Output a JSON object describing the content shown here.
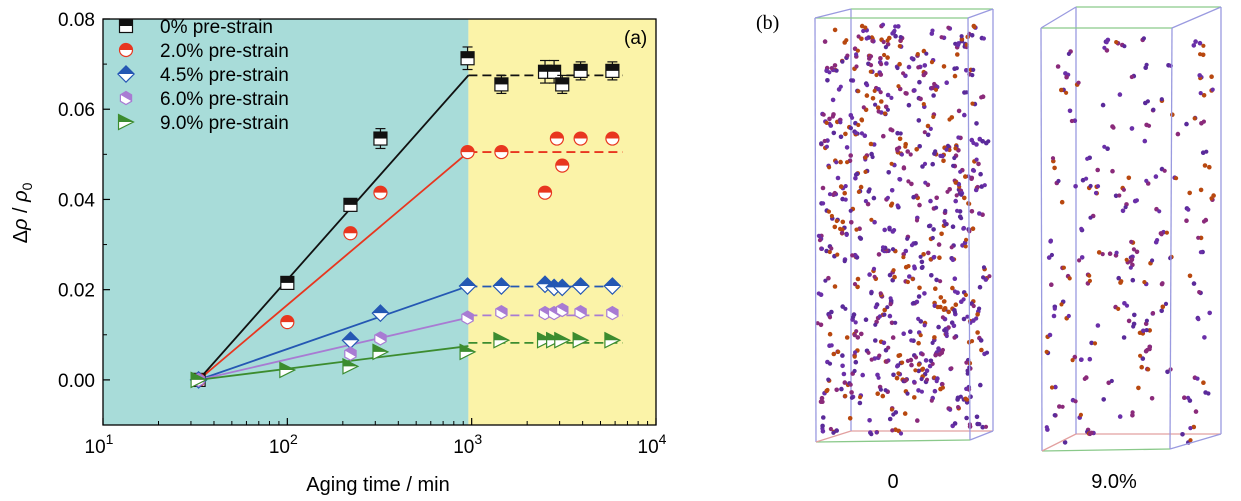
{
  "panel_a_label": "(a)",
  "panel_b_label": "(b)",
  "chart_data": {
    "type": "scatter",
    "xscale": "log",
    "xlim": [
      10,
      10000
    ],
    "ylim": [
      -0.01,
      0.08
    ],
    "xlabel": "Aging time / min",
    "ylabel": "Δρ / ρ0",
    "x_ticks": [
      {
        "value": 10,
        "base": "10",
        "exp": "1"
      },
      {
        "value": 100,
        "base": "10",
        "exp": "2"
      },
      {
        "value": 1000,
        "base": "10",
        "exp": "3"
      },
      {
        "value": 10000,
        "base": "10",
        "exp": "4"
      }
    ],
    "y_ticks": [
      "0.00",
      "0.02",
      "0.04",
      "0.06",
      "0.08"
    ],
    "y_tick_values": [
      0,
      0.02,
      0.04,
      0.06,
      0.08
    ],
    "regions": [
      {
        "x_from": 10,
        "x_to": 960,
        "color": "#a8dcd9"
      },
      {
        "x_from": 960,
        "x_to": 10000,
        "color": "#fbf3a8"
      }
    ],
    "legend_position": "top-left",
    "grid": false,
    "series": [
      {
        "name": "0% pre-strain",
        "color": "#111111",
        "marker": "square",
        "x": [
          33,
          100,
          220,
          320,
          950,
          1450,
          2500,
          2800,
          3100,
          3900,
          5800
        ],
        "y": [
          0,
          0.0215,
          0.0388,
          0.0535,
          0.0713,
          0.0655,
          0.0683,
          0.0683,
          0.0655,
          0.0685,
          0.0685
        ],
        "err": [
          0,
          0.0012,
          0.0012,
          0.0022,
          0.0025,
          0.002,
          0.0025,
          0.0025,
          0.002,
          0.002,
          0.002
        ],
        "fit": [
          [
            33,
            0
          ],
          [
            960,
            0.0675
          ]
        ],
        "plateau": [
          [
            960,
            6600
          ],
          0.0675
        ]
      },
      {
        "name": "2.0% pre-strain",
        "color": "#e8361f",
        "marker": "circle",
        "x": [
          33,
          100,
          220,
          320,
          950,
          1450,
          2500,
          2900,
          3100,
          3900,
          5800
        ],
        "y": [
          0,
          0.0128,
          0.0325,
          0.0415,
          0.0505,
          0.0505,
          0.0415,
          0.0535,
          0.0475,
          0.0535,
          0.0535
        ],
        "fit": [
          [
            33,
            0
          ],
          [
            960,
            0.0505
          ]
        ],
        "plateau": [
          [
            960,
            6600
          ],
          0.0505
        ]
      },
      {
        "name": "4.5% pre-strain",
        "color": "#2457b3",
        "marker": "diamond",
        "x": [
          33,
          220,
          320,
          950,
          1450,
          2500,
          2800,
          3100,
          3900,
          5800
        ],
        "y": [
          0,
          0.0088,
          0.0148,
          0.0208,
          0.0208,
          0.0212,
          0.0205,
          0.0205,
          0.0208,
          0.0208
        ],
        "fit": [
          [
            33,
            0
          ],
          [
            960,
            0.0208
          ]
        ],
        "plateau": [
          [
            960,
            6600
          ],
          0.0207
        ]
      },
      {
        "name": "6.0% pre-strain",
        "color": "#a87bd3",
        "marker": "hexagon",
        "x": [
          33,
          220,
          320,
          950,
          1450,
          2500,
          2800,
          3100,
          3900,
          5800
        ],
        "y": [
          0,
          0.0058,
          0.0092,
          0.0138,
          0.015,
          0.0148,
          0.0148,
          0.0155,
          0.015,
          0.0148
        ],
        "fit": [
          [
            33,
            0
          ],
          [
            960,
            0.0138
          ]
        ],
        "plateau": [
          [
            960,
            6600
          ],
          0.0143
        ]
      },
      {
        "name": "9.0% pre-strain",
        "color": "#3c8c2f",
        "marker": "triangle-right",
        "x": [
          33,
          100,
          220,
          320,
          950,
          1450,
          2500,
          2800,
          3100,
          3900,
          5800
        ],
        "y": [
          0,
          0.0022,
          0.003,
          0.0062,
          0.0062,
          0.0088,
          0.0088,
          0.0088,
          0.0088,
          0.0088,
          0.0088
        ],
        "fit": [
          [
            33,
            0
          ],
          [
            960,
            0.0075
          ]
        ],
        "plateau": [
          [
            960,
            6600
          ],
          0.0082
        ]
      }
    ]
  },
  "panel_b": {
    "boxes": [
      {
        "caption": "0",
        "particle_count": 520
      },
      {
        "caption": "9.0%",
        "particle_count": 170
      }
    ],
    "particle_colors": [
      "#6a2fa8",
      "#8a2a7a",
      "#b8480f",
      "#5a2a9a"
    ]
  }
}
